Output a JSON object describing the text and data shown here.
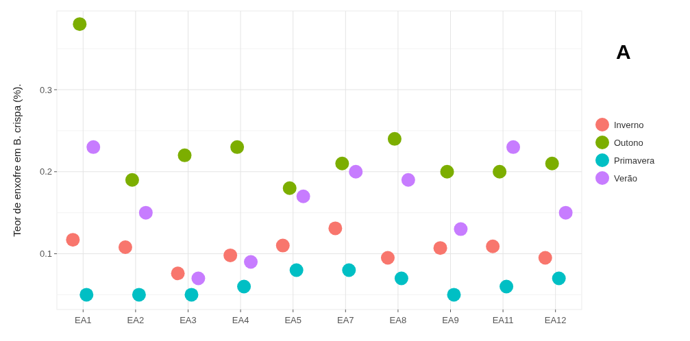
{
  "chart_data": {
    "type": "scatter",
    "ylabel": "Teor de enxofre em  B. crispa (%).",
    "annotations": [
      "A"
    ],
    "categories": [
      "EA1",
      "EA2",
      "EA3",
      "EA4",
      "EA5",
      "EA7",
      "EA8",
      "EA9",
      "EA11",
      "EA12"
    ],
    "series": [
      {
        "name": "Inverno",
        "color": "#f8766d",
        "values": [
          0.117,
          0.108,
          0.076,
          0.098,
          0.11,
          0.131,
          0.095,
          0.107,
          0.109,
          0.095
        ]
      },
      {
        "name": "Outono",
        "color": "#7cae00",
        "values": [
          0.38,
          0.19,
          0.22,
          0.23,
          0.18,
          0.21,
          0.24,
          0.2,
          0.2,
          0.21
        ]
      },
      {
        "name": "Primavera",
        "color": "#00bfc4",
        "values": [
          0.05,
          0.05,
          0.05,
          0.06,
          0.08,
          0.08,
          0.07,
          0.05,
          0.06,
          0.07
        ]
      },
      {
        "name": "Verão",
        "color": "#c77cff",
        "values": [
          0.23,
          0.15,
          0.07,
          0.09,
          0.17,
          0.2,
          0.19,
          0.13,
          0.23,
          0.15
        ]
      }
    ],
    "ylim": [
      0.032,
      0.396
    ],
    "yticks": [
      0.1,
      0.2,
      0.3
    ],
    "grid": true,
    "legend": "right",
    "marker": "circle"
  }
}
